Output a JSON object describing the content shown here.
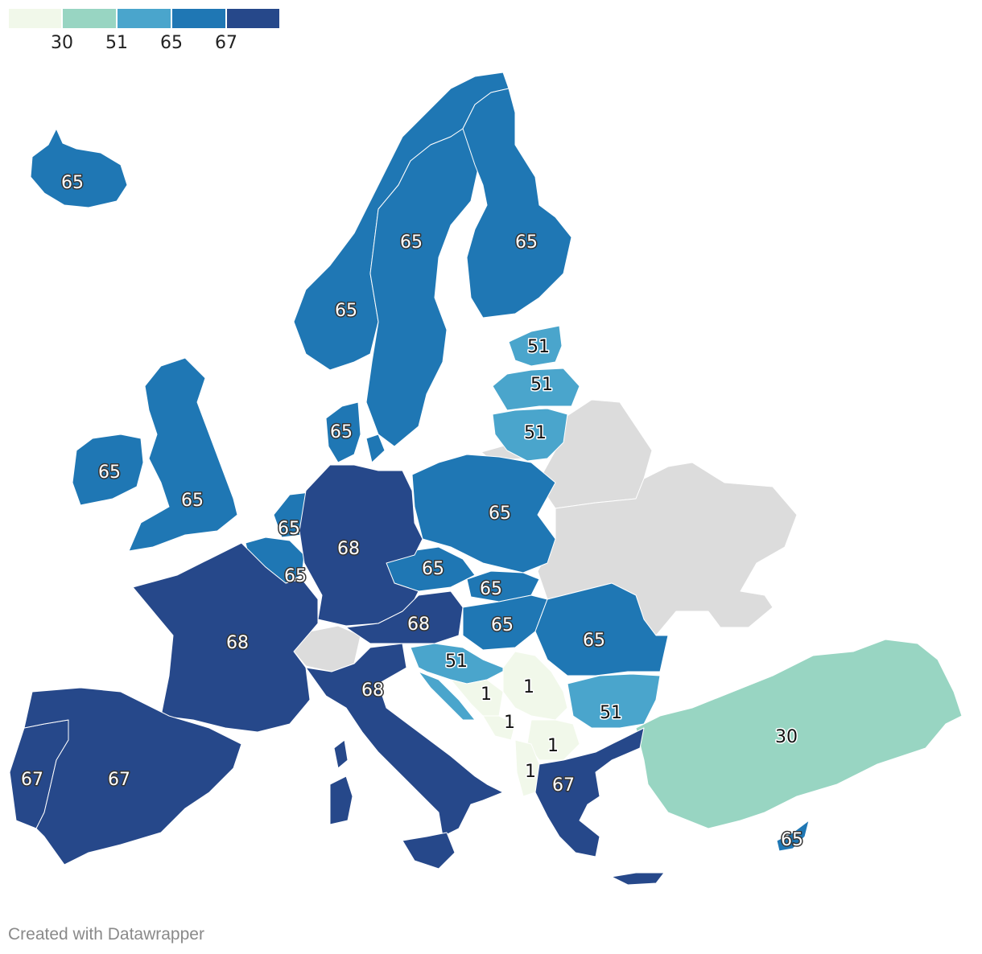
{
  "legend": {
    "colors": [
      "#f1f8ea",
      "#98d5c2",
      "#4aa5cc",
      "#1f77b4",
      "#26488a"
    ],
    "ticks": [
      "30",
      "51",
      "65",
      "67"
    ]
  },
  "colors": {
    "c1": "#f1f8ea",
    "c30": "#98d5c2",
    "c51": "#4aa5cc",
    "c65": "#1f77b4",
    "c67": "#26488a",
    "nodata": "#dcdcdc"
  },
  "labels": [
    {
      "name": "iceland",
      "value": "65"
    },
    {
      "name": "norway",
      "value": "65"
    },
    {
      "name": "sweden",
      "value": "65"
    },
    {
      "name": "finland",
      "value": "65"
    },
    {
      "name": "estonia",
      "value": "51"
    },
    {
      "name": "latvia",
      "value": "51"
    },
    {
      "name": "lithuania",
      "value": "51"
    },
    {
      "name": "denmark",
      "value": "65"
    },
    {
      "name": "ireland",
      "value": "65"
    },
    {
      "name": "united-kingdom",
      "value": "65"
    },
    {
      "name": "netherlands",
      "value": "65"
    },
    {
      "name": "belgium",
      "value": "65"
    },
    {
      "name": "germany",
      "value": "68"
    },
    {
      "name": "poland",
      "value": "65"
    },
    {
      "name": "czechia",
      "value": "65"
    },
    {
      "name": "slovakia",
      "value": "65"
    },
    {
      "name": "austria",
      "value": "68"
    },
    {
      "name": "hungary",
      "value": "65"
    },
    {
      "name": "romania",
      "value": "65"
    },
    {
      "name": "france",
      "value": "68"
    },
    {
      "name": "italy",
      "value": "68"
    },
    {
      "name": "slovenia-croatia",
      "value": "51"
    },
    {
      "name": "bosnia",
      "value": "1"
    },
    {
      "name": "serbia",
      "value": "1"
    },
    {
      "name": "montenegro",
      "value": "1"
    },
    {
      "name": "kosovo-macedonia",
      "value": "1"
    },
    {
      "name": "albania",
      "value": "1"
    },
    {
      "name": "bulgaria",
      "value": "51"
    },
    {
      "name": "greece",
      "value": "67"
    },
    {
      "name": "turkey",
      "value": "30"
    },
    {
      "name": "cyprus",
      "value": "65"
    },
    {
      "name": "portugal",
      "value": "67"
    },
    {
      "name": "spain",
      "value": "67"
    }
  ],
  "credit": "Created with Datawrapper"
}
